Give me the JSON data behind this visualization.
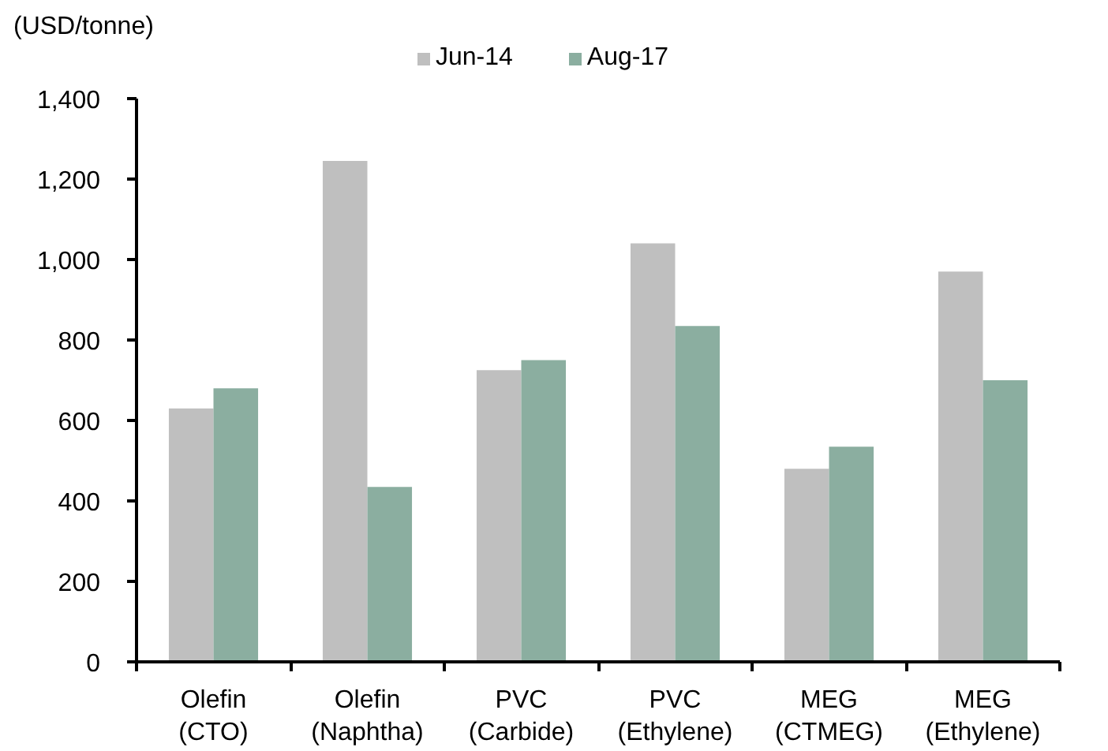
{
  "chart_data": {
    "type": "bar",
    "ylabel": "(USD/tonne)",
    "categories": [
      "Olefin (CTO)",
      "Olefin (Naphtha)",
      "PVC (Carbide)",
      "PVC (Ethylene)",
      "MEG (CTMEG)",
      "MEG (Ethylene)"
    ],
    "series": [
      {
        "name": "Jun-14",
        "color": "#bfbfbf",
        "values": [
          630,
          1245,
          725,
          1040,
          480,
          970
        ]
      },
      {
        "name": "Aug-17",
        "color": "#8baea0",
        "values": [
          680,
          435,
          750,
          835,
          535,
          700
        ]
      }
    ],
    "ylim": [
      0,
      1400
    ],
    "yticks": [
      0,
      200,
      400,
      600,
      800,
      {
        "value": 1000,
        "label": "1,000"
      },
      {
        "value": 1200,
        "label": "1,200"
      },
      {
        "value": 1400,
        "label": "1,400"
      }
    ],
    "grid": false,
    "legend": "top"
  }
}
